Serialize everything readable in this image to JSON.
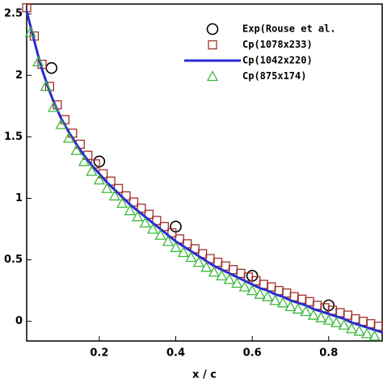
{
  "chart_data": {
    "type": "scatter",
    "xlabel": "x / c",
    "xlim": [
      0.01,
      0.94
    ],
    "ylim": [
      -0.16,
      2.58
    ],
    "xticks": [
      0.2,
      0.4,
      0.6,
      0.8
    ],
    "yticks": [
      0,
      0.5,
      1,
      1.5,
      2,
      2.5
    ],
    "grid": false,
    "legend": "upper right",
    "series": [
      {
        "name": "Exp(Rouse et al.",
        "marker": "circle",
        "color": "#000000",
        "x": [
          0.075,
          0.2,
          0.4,
          0.6,
          0.8
        ],
        "values": [
          2.06,
          1.3,
          0.77,
          0.37,
          0.13
        ]
      },
      {
        "name": "Cp(1078x233)",
        "marker": "square",
        "color": "#a0302a",
        "x": [
          0.01,
          0.03,
          0.05,
          0.07,
          0.09,
          0.11,
          0.13,
          0.15,
          0.17,
          0.19,
          0.21,
          0.23,
          0.25,
          0.27,
          0.29,
          0.31,
          0.33,
          0.35,
          0.37,
          0.39,
          0.41,
          0.43,
          0.45,
          0.47,
          0.49,
          0.51,
          0.53,
          0.55,
          0.57,
          0.59,
          0.61,
          0.63,
          0.65,
          0.67,
          0.69,
          0.71,
          0.73,
          0.75,
          0.77,
          0.79,
          0.81,
          0.83,
          0.85,
          0.87,
          0.89,
          0.91,
          0.93
        ],
        "values": [
          2.55,
          2.32,
          2.09,
          1.91,
          1.76,
          1.64,
          1.53,
          1.44,
          1.35,
          1.28,
          1.2,
          1.14,
          1.08,
          1.02,
          0.97,
          0.92,
          0.87,
          0.82,
          0.77,
          0.72,
          0.67,
          0.63,
          0.59,
          0.55,
          0.51,
          0.48,
          0.45,
          0.42,
          0.39,
          0.36,
          0.33,
          0.3,
          0.28,
          0.25,
          0.23,
          0.2,
          0.18,
          0.16,
          0.13,
          0.11,
          0.09,
          0.07,
          0.05,
          0.02,
          0,
          -0.02,
          -0.04
        ]
      },
      {
        "name": "Cp(1042x220)",
        "marker": "line",
        "color": "#2a2ad0",
        "x": [
          0.01,
          0.02,
          0.03,
          0.04,
          0.05,
          0.06,
          0.07,
          0.08,
          0.09,
          0.1,
          0.12,
          0.14,
          0.16,
          0.18,
          0.2,
          0.22,
          0.24,
          0.26,
          0.28,
          0.3,
          0.32,
          0.34,
          0.36,
          0.38,
          0.4,
          0.42,
          0.44,
          0.46,
          0.48,
          0.5,
          0.52,
          0.54,
          0.56,
          0.58,
          0.6,
          0.62,
          0.64,
          0.66,
          0.68,
          0.7,
          0.72,
          0.74,
          0.76,
          0.78,
          0.8,
          0.82,
          0.84,
          0.86,
          0.88,
          0.9,
          0.92,
          0.94
        ],
        "values": [
          2.52,
          2.4,
          2.28,
          2.16,
          2.05,
          1.96,
          1.87,
          1.79,
          1.72,
          1.65,
          1.54,
          1.44,
          1.35,
          1.27,
          1.2,
          1.13,
          1.07,
          1.01,
          0.95,
          0.9,
          0.85,
          0.8,
          0.75,
          0.7,
          0.65,
          0.61,
          0.57,
          0.53,
          0.49,
          0.45,
          0.42,
          0.39,
          0.36,
          0.33,
          0.3,
          0.27,
          0.25,
          0.22,
          0.2,
          0.17,
          0.15,
          0.13,
          0.1,
          0.08,
          0.06,
          0.04,
          0.02,
          -0.01,
          -0.03,
          -0.05,
          -0.07,
          -0.09
        ]
      },
      {
        "name": "Cp(875x174)",
        "marker": "triangle",
        "color": "#3cb83c",
        "x": [
          0.02,
          0.04,
          0.06,
          0.08,
          0.1,
          0.12,
          0.14,
          0.16,
          0.18,
          0.2,
          0.22,
          0.24,
          0.26,
          0.28,
          0.3,
          0.32,
          0.34,
          0.36,
          0.38,
          0.4,
          0.42,
          0.44,
          0.46,
          0.48,
          0.5,
          0.52,
          0.54,
          0.56,
          0.58,
          0.6,
          0.62,
          0.64,
          0.66,
          0.68,
          0.7,
          0.72,
          0.74,
          0.76,
          0.78,
          0.8,
          0.82,
          0.84,
          0.86,
          0.88,
          0.9,
          0.92
        ],
        "values": [
          2.35,
          2.11,
          1.91,
          1.74,
          1.6,
          1.49,
          1.39,
          1.3,
          1.22,
          1.15,
          1.08,
          1.02,
          0.96,
          0.9,
          0.85,
          0.8,
          0.75,
          0.7,
          0.65,
          0.6,
          0.56,
          0.52,
          0.48,
          0.44,
          0.4,
          0.37,
          0.34,
          0.31,
          0.28,
          0.25,
          0.22,
          0.2,
          0.17,
          0.15,
          0.12,
          0.1,
          0.08,
          0.05,
          0.03,
          0.01,
          -0.01,
          -0.03,
          -0.06,
          -0.08,
          -0.1,
          -0.12
        ]
      }
    ]
  }
}
